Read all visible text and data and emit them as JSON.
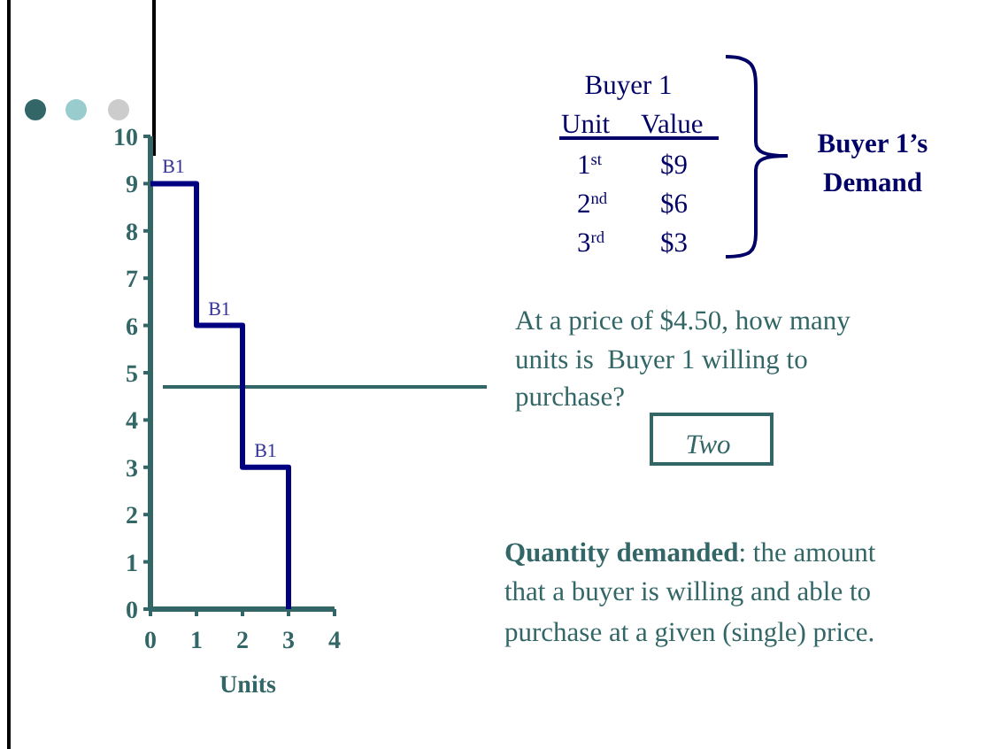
{
  "chart_data": {
    "type": "step",
    "x": [
      0,
      1,
      2,
      3
    ],
    "series": [
      {
        "color": "#000080",
        "values": [
          9,
          6,
          3,
          0
        ]
      }
    ],
    "xlim": [
      0,
      4
    ],
    "xticks": [
      0,
      1,
      2,
      3,
      4
    ],
    "ylim": [
      0,
      10
    ],
    "yticks": [
      0,
      1,
      2,
      3,
      4,
      5,
      6,
      7,
      8,
      9,
      10
    ],
    "xlabel": "Units",
    "grid": false,
    "marker": "none",
    "line_style": "solid",
    "ref_lines": [
      {
        "axis": "y",
        "value": 4.7,
        "color": "#336666"
      }
    ],
    "annotations": [
      {
        "text": "B1",
        "x": 0.5,
        "y": 9
      },
      {
        "text": "B1",
        "x": 1.5,
        "y": 6
      },
      {
        "text": "B1",
        "x": 2.5,
        "y": 3
      },
      "Buyer 1",
      "Unit",
      "Value",
      "1$^{st}$",
      "$9",
      "2$^{nd}$",
      "$6",
      "3$^{rd}$",
      "$3",
      "Buyer 1’s",
      "Demand",
      "At a price of $4.50, how many",
      "units is  Buyer 1 willing to",
      "purchase?",
      "Two",
      "Quantity demanded",
      ": the amount",
      "that a buyer is willing and able to",
      "purchase at a given (single) price."
    ]
  }
}
